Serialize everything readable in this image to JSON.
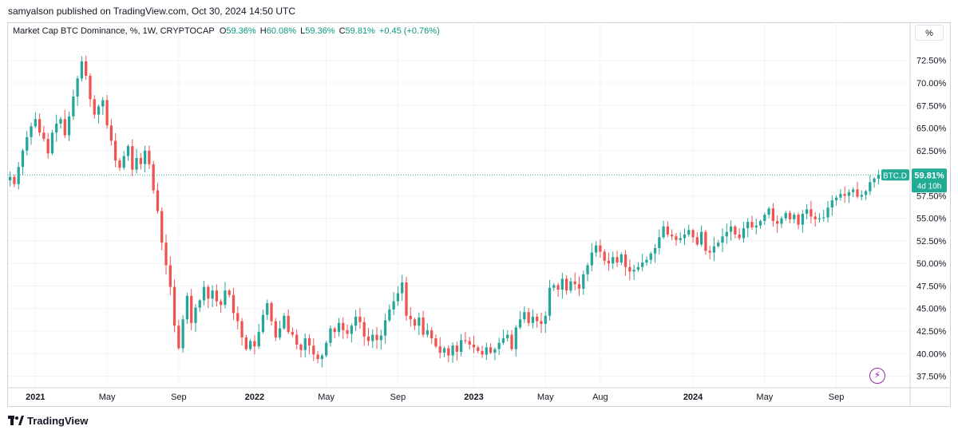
{
  "header": {
    "publish_line": "samyalson published on TradingView.com, Oct 30, 2024 14:50 UTC"
  },
  "legend": {
    "symbol": "Market Cap BTC Dominance, %, 1W, CRYPTOCAP",
    "o_label": "O",
    "o_value": "59.36%",
    "h_label": "H",
    "h_value": "60.08%",
    "l_label": "L",
    "l_value": "59.36%",
    "c_label": "C",
    "c_value": "59.81%",
    "change": "+0.45 (+0.76%)"
  },
  "unit_button": "%",
  "price_tag": {
    "symbol": "BTC.D",
    "value": "59.81%",
    "countdown": "4d 10h"
  },
  "footer": {
    "brand": "TradingView"
  },
  "colors": {
    "up": "#26a69a",
    "down": "#ef5350",
    "grid": "#f0f3fa",
    "tag": "#22ab94",
    "flash": "#9c27b0"
  },
  "chart_data": {
    "type": "candlestick",
    "interval": "1W",
    "y_unit": "%",
    "y_ticks": [
      "72.50%",
      "70.00%",
      "67.50%",
      "65.00%",
      "62.50%",
      "57.50%",
      "55.00%",
      "52.50%",
      "50.00%",
      "47.50%",
      "45.00%",
      "42.50%",
      "40.00%",
      "37.50%"
    ],
    "y_tick_values": [
      72.5,
      70,
      67.5,
      65,
      62.5,
      57.5,
      55,
      52.5,
      50,
      47.5,
      45,
      42.5,
      40,
      37.5
    ],
    "ylim": [
      36.4,
      74.6
    ],
    "x_ticks": [
      "2021",
      "May",
      "Sep",
      "2022",
      "May",
      "Sep",
      "2023",
      "May",
      "Aug",
      "2024",
      "May",
      "Sep"
    ],
    "x_tick_weeks": [
      6,
      23,
      40,
      58,
      75,
      92,
      110,
      127,
      140,
      162,
      179,
      196
    ],
    "x_tick_bold": [
      true,
      false,
      false,
      true,
      false,
      false,
      true,
      false,
      false,
      true,
      false,
      false
    ],
    "week_count": 214,
    "last_close": 59.81,
    "closes": [
      59.6,
      58.8,
      60.7,
      62.5,
      64.0,
      65.2,
      66.0,
      64.5,
      63.8,
      62.2,
      64.5,
      65.5,
      66.0,
      64.2,
      66.3,
      68.5,
      70.5,
      72.4,
      70.8,
      68.2,
      66.5,
      67.4,
      68.1,
      65.3,
      63.6,
      61.4,
      60.6,
      61.9,
      63.0,
      60.4,
      61.7,
      61.0,
      62.5,
      61.0,
      58.1,
      55.8,
      52.3,
      49.8,
      47.4,
      43.1,
      40.6,
      43.8,
      46.4,
      43.4,
      45.1,
      45.9,
      47.4,
      46.1,
      47.0,
      45.8,
      45.4,
      47.0,
      46.5,
      44.5,
      43.6,
      41.8,
      40.5,
      41.4,
      40.8,
      42.4,
      44.3,
      45.6,
      43.6,
      41.8,
      42.8,
      44.2,
      42.4,
      42.1,
      41.0,
      40.4,
      41.7,
      40.9,
      39.9,
      39.4,
      39.8,
      41.2,
      42.8,
      42.4,
      43.4,
      42.6,
      42.2,
      43.1,
      44.1,
      43.5,
      41.9,
      41.4,
      42.1,
      41.5,
      42.0,
      43.7,
      44.9,
      45.8,
      46.7,
      47.9,
      44.2,
      43.8,
      43.1,
      44.0,
      42.1,
      42.6,
      41.7,
      40.8,
      40.1,
      40.6,
      39.8,
      40.9,
      40.2,
      41.5,
      41.4,
      41.0,
      40.7,
      40.3,
      39.9,
      40.7,
      40.1,
      40.5,
      41.2,
      41.7,
      42.1,
      40.5,
      42.9,
      43.8,
      44.6,
      43.4,
      44.1,
      43.6,
      43.3,
      44.2,
      47.3,
      47.6,
      47.1,
      48.3,
      47.0,
      48.0,
      47.7,
      47.2,
      48.8,
      49.8,
      51.2,
      52.0,
      51.3,
      50.3,
      50.0,
      50.7,
      50.1,
      51.0,
      49.6,
      49.1,
      49.3,
      49.6,
      50.1,
      50.4,
      51.1,
      51.7,
      52.9,
      54.1,
      53.2,
      53.0,
      52.6,
      52.8,
      53.2,
      53.7,
      52.9,
      52.1,
      53.5,
      51.4,
      51.2,
      51.9,
      52.3,
      53.0,
      53.5,
      54.1,
      53.2,
      52.8,
      53.9,
      54.6,
      54.0,
      54.2,
      54.7,
      55.4,
      56.1,
      54.7,
      54.4,
      55.0,
      55.6,
      54.9,
      55.4,
      54.3,
      55.5,
      56.0,
      55.2,
      54.9,
      55.0,
      55.1,
      56.2,
      57.0,
      57.3,
      57.7,
      57.5,
      57.9,
      58.2,
      57.4,
      57.6,
      58.0,
      59.0,
      59.4,
      59.81
    ],
    "note": "closes are weekly closing BTC dominance values (%), read approximately from the chart gridlines"
  }
}
